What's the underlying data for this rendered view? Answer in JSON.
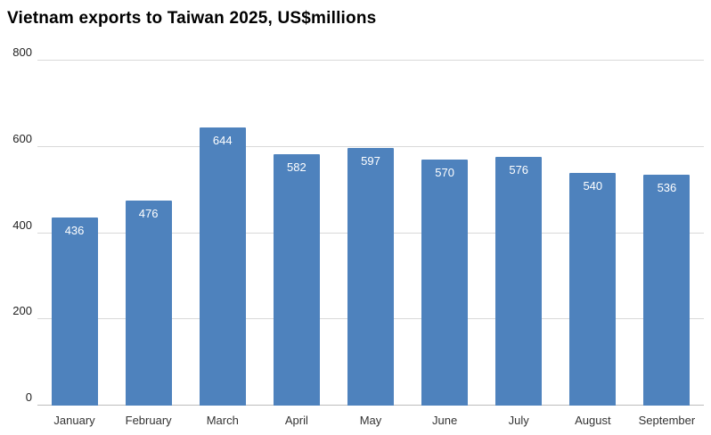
{
  "chart_data": {
    "type": "bar",
    "title": "Vietnam exports to Taiwan 2025, US$millions",
    "categories": [
      "January",
      "February",
      "March",
      "April",
      "May",
      "June",
      "July",
      "August",
      "September"
    ],
    "values": [
      436,
      476,
      644,
      582,
      597,
      570,
      576,
      540,
      536
    ],
    "xlabel": "",
    "ylabel": "",
    "ylim": [
      0,
      800
    ],
    "yticks": [
      0,
      200,
      400,
      600,
      800
    ],
    "grid": true,
    "legend_position": "none",
    "bar_color": "#4e82bd",
    "value_label_color": "#ffffff",
    "gridline_color": "#d9d9d9"
  }
}
